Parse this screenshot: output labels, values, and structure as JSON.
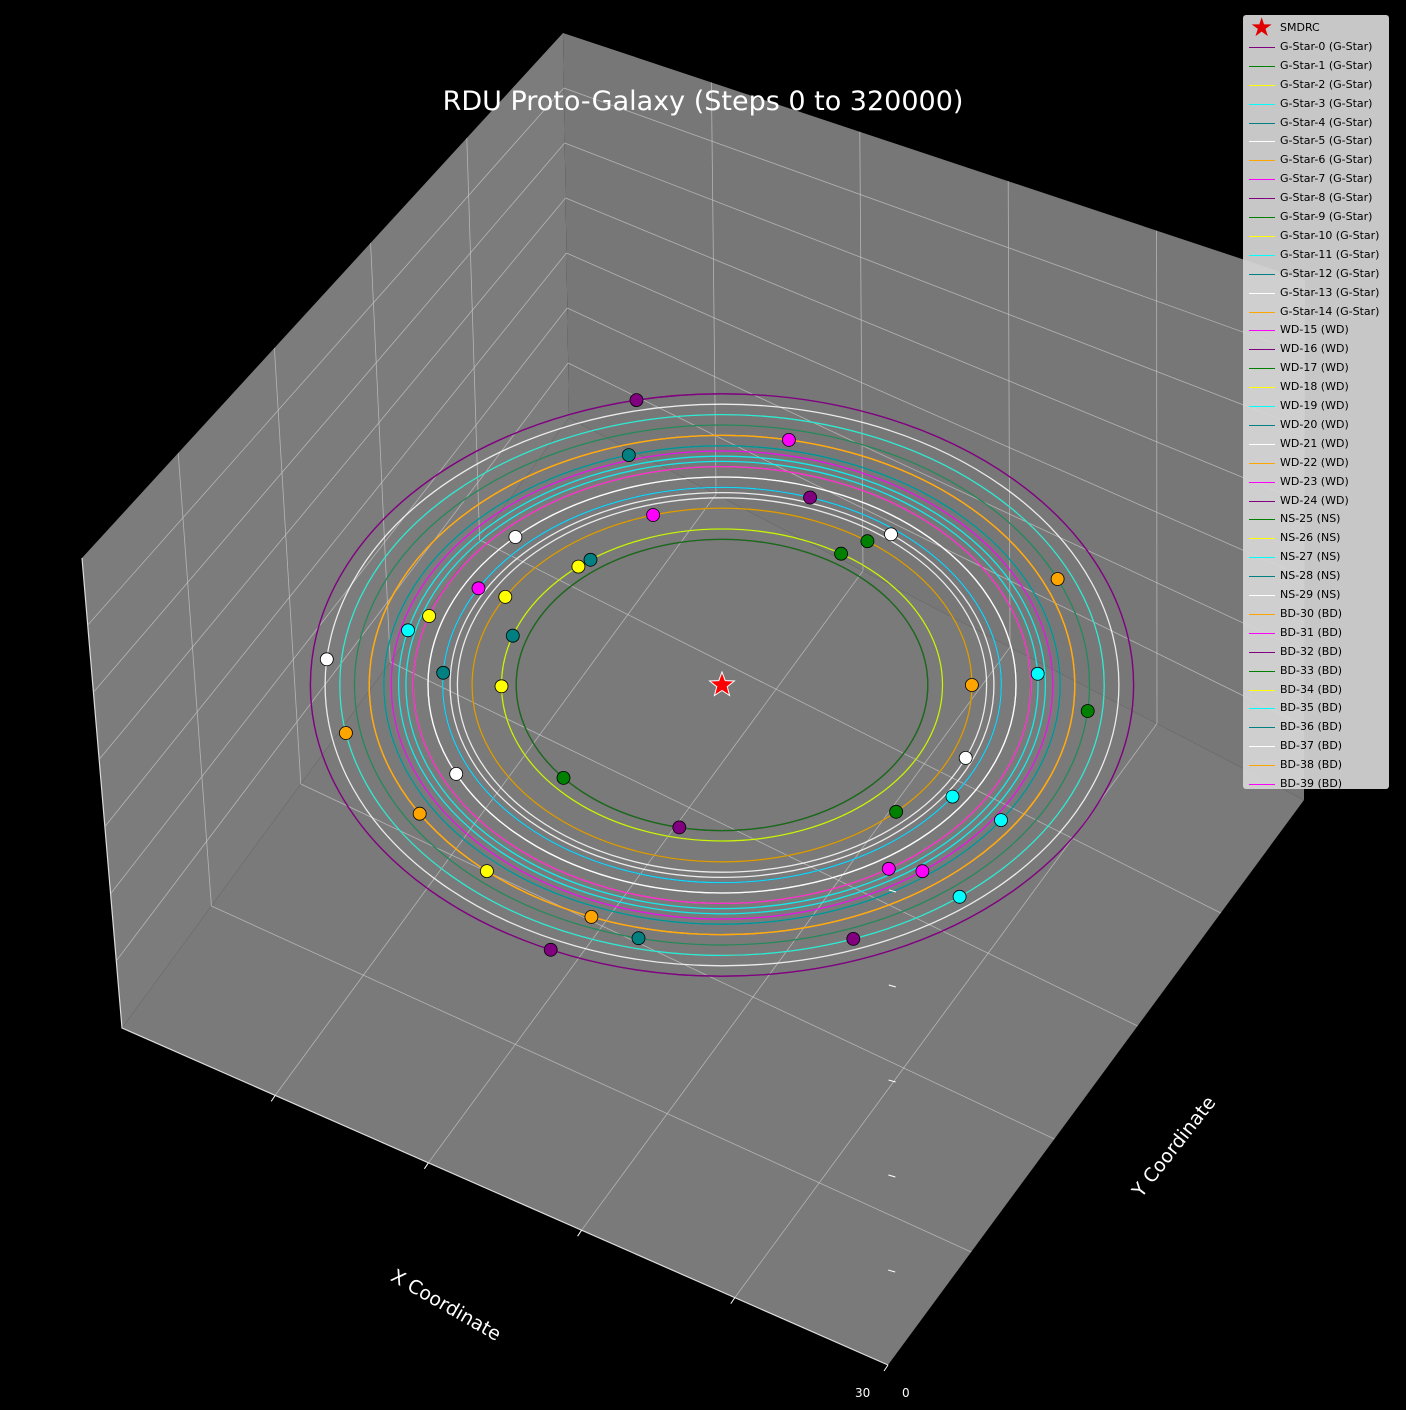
{
  "chart_data": {
    "type": "scatter",
    "projection": "3d",
    "title": "RDU Proto-Galaxy (Steps 0 to 320000)",
    "xlabel": "X Coordinate",
    "ylabel": "Y Coordinate",
    "xlim": [
      -60,
      60
    ],
    "ylim": [
      -60,
      60
    ],
    "grid": true,
    "legend_position": "upper-right",
    "axis_tick_labels": [
      "30",
      "0"
    ],
    "center": {
      "name": "SMDRC",
      "x": 0,
      "y": 0,
      "marker": "star",
      "color": "#ff0000"
    },
    "series": [
      {
        "name": "G-Star-0 (G-Star)",
        "color": "#800080",
        "radius": 52,
        "phase": -1.22
      },
      {
        "name": "G-Star-1 (G-Star)",
        "color": "#008000",
        "radius": 50,
        "phase": -0.1
      },
      {
        "name": "G-Star-2 (G-Star)",
        "color": "#ffff00",
        "radius": 30,
        "phase": 2.28
      },
      {
        "name": "G-Star-3 (G-Star)",
        "color": "#00ffff",
        "radius": 43,
        "phase": 0.05
      },
      {
        "name": "G-Star-4 (G-Star)",
        "color": "#008080",
        "radius": 30,
        "phase": 2.21
      },
      {
        "name": "G-Star-5 (G-Star)",
        "color": "#ffffff",
        "radius": 40,
        "phase": 2.35
      },
      {
        "name": "G-Star-6 (G-Star)",
        "color": "#ffa500",
        "radius": 52,
        "phase": 3.32
      },
      {
        "name": "G-Star-7 (G-Star)",
        "color": "#ff00ff",
        "radius": 38,
        "phase": 2.63
      },
      {
        "name": "G-Star-8 (G-Star)",
        "color": "#800080",
        "radius": 56,
        "phase": -2.0
      },
      {
        "name": "G-Star-9 (G-Star)",
        "color": "#008000",
        "radius": 34,
        "phase": -0.8
      },
      {
        "name": "G-Star-10 (G-Star)",
        "color": "#ffff00",
        "radius": 42,
        "phase": 2.82
      },
      {
        "name": "G-Star-11 (G-Star)",
        "color": "#00ffff",
        "radius": 44,
        "phase": 2.9
      },
      {
        "name": "G-Star-12 (G-Star)",
        "color": "#008080",
        "radius": 38,
        "phase": 3.08
      },
      {
        "name": "G-Star-13 (G-Star)",
        "color": "#ffffff",
        "radius": 54,
        "phase": 3.05
      },
      {
        "name": "G-Star-14 (G-Star)",
        "color": "#ffa500",
        "radius": 50,
        "phase": 0.42
      },
      {
        "name": "WD-15 (WD)",
        "color": "#ff00ff",
        "radius": 45,
        "phase": -0.92
      },
      {
        "name": "WD-16 (WD)",
        "color": "#800080",
        "radius": 28,
        "phase": -1.78
      },
      {
        "name": "WD-17 (WD)",
        "color": "#008000",
        "radius": 30,
        "phase": 1.0
      },
      {
        "name": "WD-18 (WD)",
        "color": "#ffff00",
        "radius": 34,
        "phase": 2.62
      },
      {
        "name": "WD-19 (WD)",
        "color": "#00ffff",
        "radius": 46,
        "phase": -0.6
      },
      {
        "name": "WD-20 (WD)",
        "color": "#008080",
        "radius": 50,
        "phase": -1.8
      },
      {
        "name": "WD-21 (WD)",
        "color": "#ffffff",
        "radius": 37,
        "phase": 0.9
      },
      {
        "name": "WD-22 (WD)",
        "color": "#ffa500",
        "radius": 48,
        "phase": -1.95
      },
      {
        "name": "WD-23 (WD)",
        "color": "#ff00ff",
        "radius": 48,
        "phase": 1.38
      },
      {
        "name": "WD-24 (WD)",
        "color": "#800080",
        "radius": 56,
        "phase": 1.78
      },
      {
        "name": "NS-25 (NS)",
        "color": "#008000",
        "radius": 28,
        "phase": -2.45
      },
      {
        "name": "NS-26 (NS)",
        "color": "#ffff00",
        "radius": 48,
        "phase": -2.3
      },
      {
        "name": "NS-27 (NS)",
        "color": "#00ffff",
        "radius": 52,
        "phase": -0.9
      },
      {
        "name": "NS-28 (NS)",
        "color": "#008080",
        "radius": 30,
        "phase": 2.82
      },
      {
        "name": "NS-29 (NS)",
        "color": "#ffffff",
        "radius": 40,
        "phase": -2.7
      },
      {
        "name": "BD-30 (BD)",
        "color": "#ffa500",
        "radius": 48,
        "phase": -2.6
      },
      {
        "name": "BD-31 (BD)",
        "color": "#ff00ff",
        "radius": 34,
        "phase": 1.85
      },
      {
        "name": "BD-32 (BD)",
        "color": "#800080",
        "radius": 38,
        "phase": 1.25
      },
      {
        "name": "BD-33 (BD)",
        "color": "#008000",
        "radius": 34,
        "phase": 0.95
      },
      {
        "name": "BD-34 (BD)",
        "color": "#ffff00",
        "radius": 30,
        "phase": 3.15
      },
      {
        "name": "BD-35 (BD)",
        "color": "#00ffff",
        "radius": 38,
        "phase": -0.6
      },
      {
        "name": "BD-36 (BD)",
        "color": "#008080",
        "radius": 46,
        "phase": 1.85
      },
      {
        "name": "BD-37 (BD)",
        "color": "#ffffff",
        "radius": 36,
        "phase": -0.4
      },
      {
        "name": "BD-38 (BD)",
        "color": "#ffa500",
        "radius": 34,
        "phase": 0.0
      },
      {
        "name": "BD-39 (BD)",
        "color": "#ff00ff",
        "radius": 42,
        "phase": -1.0
      }
    ]
  }
}
